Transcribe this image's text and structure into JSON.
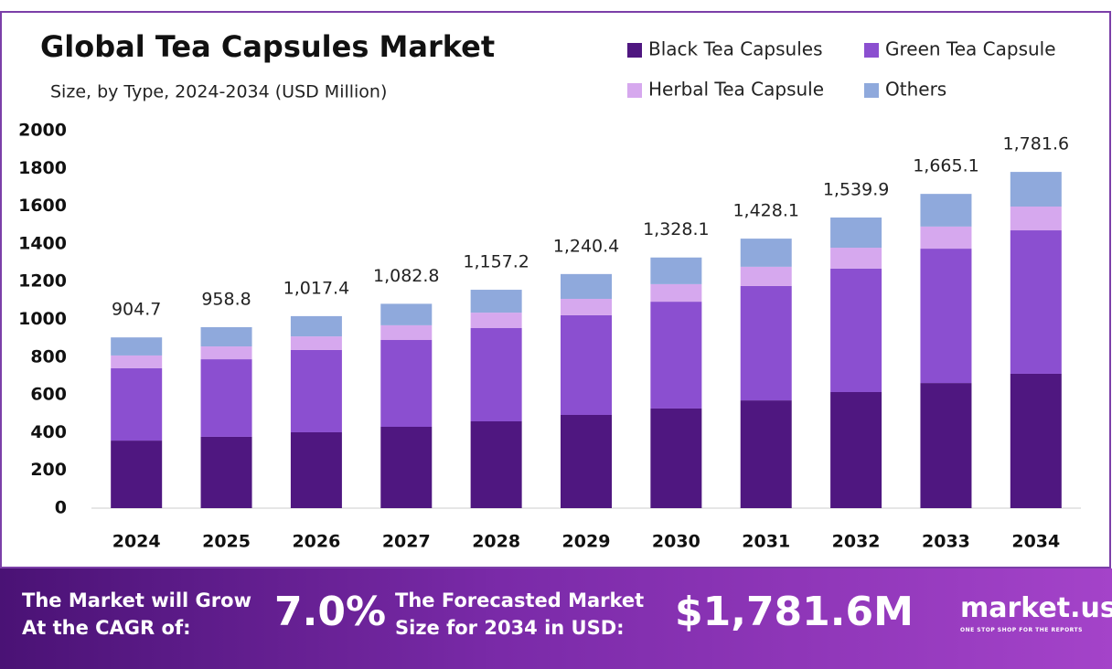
{
  "chart_data": {
    "type": "stacked-bar",
    "title": "Global Tea Capsules Market",
    "subtitle": "Size, by Type, 2024-2034 (USD Million)",
    "categories": [
      "2024",
      "2025",
      "2026",
      "2027",
      "2028",
      "2029",
      "2030",
      "2031",
      "2032",
      "2033",
      "2034"
    ],
    "series": [
      {
        "name": "Black Tea Capsules",
        "color": "#4f1780",
        "values": [
          358,
          378,
          402,
          431,
          460,
          494,
          528,
          571,
          615,
          663,
          712
        ]
      },
      {
        "name": "Green Tea Capsule",
        "color": "#8b4fd0",
        "values": [
          383,
          411,
          436,
          460,
          494,
          528,
          566,
          606,
          654,
          712,
          760
        ]
      },
      {
        "name": "Herbal Tea Capsule",
        "color": "#d6a8ee",
        "values": [
          68,
          68,
          72,
          78,
          82,
          87,
          93,
          102,
          111,
          117,
          126
        ]
      },
      {
        "name": "Others",
        "color": "#8fa9dc",
        "values": [
          95.7,
          101.8,
          107.4,
          113.8,
          121.2,
          131.4,
          141.1,
          149.1,
          159.9,
          173.1,
          183.6
        ]
      }
    ],
    "totals": [
      904.7,
      958.8,
      1017.4,
      1082.8,
      1157.2,
      1240.4,
      1328.1,
      1428.1,
      1539.9,
      1665.1,
      1781.6
    ],
    "total_labels": [
      "904.7",
      "958.8",
      "1,017.4",
      "1,082.8",
      "1,157.2",
      "1,240.4",
      "1,328.1",
      "1,428.1",
      "1,539.9",
      "1,665.1",
      "1,781.6"
    ],
    "ylim": [
      0,
      2000
    ],
    "yticks": [
      0,
      200,
      400,
      600,
      800,
      1000,
      1200,
      1400,
      1600,
      1800,
      2000
    ],
    "grid": false,
    "legend": "top-right"
  },
  "footer": {
    "cagr_text": [
      "The Market will Grow",
      "At the CAGR of:"
    ],
    "cagr": "7.0%",
    "forecast_text": [
      "The Forecasted Market",
      "Size for 2034 in USD:"
    ],
    "forecast": "$1,781.6M",
    "brand": "market.us",
    "tagline": "ONE STOP SHOP FOR THE REPORTS"
  }
}
